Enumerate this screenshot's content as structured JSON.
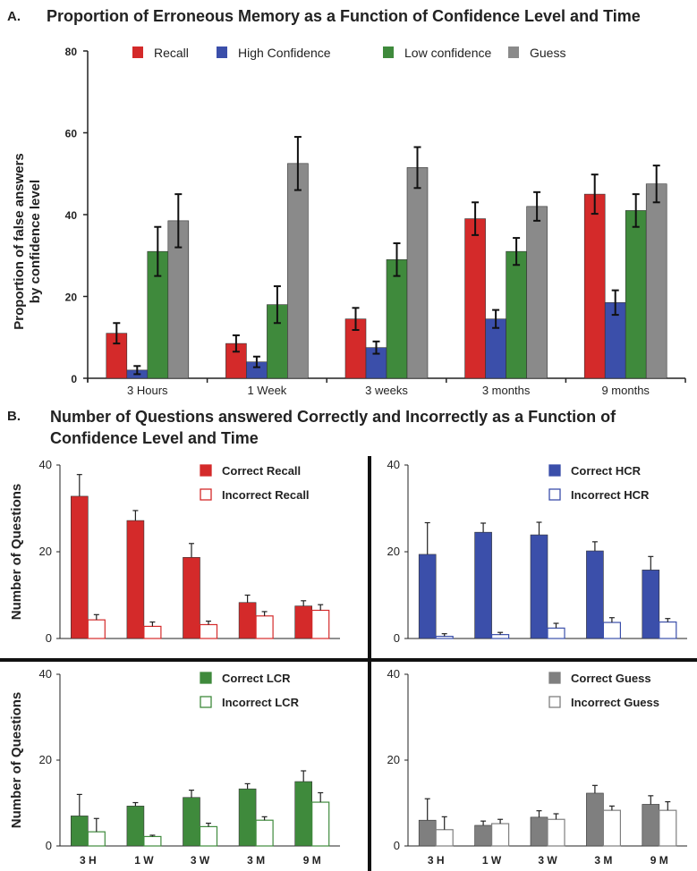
{
  "colors": {
    "Recall": "#d42a2a",
    "High Confidence": "#3b4faa",
    "Low confidence": "#3f8a3c",
    "Guess": "#8a8a8a"
  },
  "panel_a": {
    "letter": "A.",
    "title": "Proportion of Erroneous Memory as a Function of Confidence Level and Time"
  },
  "panel_b": {
    "letter": "B.",
    "title_line1": "Number of Questions answered Correctly and Incorrectly as a Function of",
    "title_line2": "Confidence Level and Time"
  },
  "chart_data": [
    {
      "type": "bar",
      "title": "Proportion of Erroneous Memory as a Function of Confidence Level and Time",
      "ylabel": "Proportion of false answers by confidence level",
      "ylabel_lines": [
        "Proportion of false answers",
        "by confidence level"
      ],
      "xlabel": "",
      "ylim": [
        0,
        80
      ],
      "yticks": [
        0,
        20,
        40,
        60,
        80
      ],
      "categories": [
        "3 Hours",
        "1 Week",
        "3 weeks",
        "3 months",
        "9 months"
      ],
      "legend_position": "top",
      "series": [
        {
          "name": "Recall",
          "values": [
            11,
            8.5,
            14.5,
            39,
            45
          ],
          "errors": [
            2.5,
            2,
            2.7,
            4,
            4.8
          ]
        },
        {
          "name": "High Confidence",
          "values": [
            2,
            4,
            7.5,
            14.5,
            18.5
          ],
          "errors": [
            1,
            1.3,
            1.5,
            2.2,
            3
          ]
        },
        {
          "name": "Low confidence",
          "values": [
            31,
            18,
            29,
            31,
            41
          ],
          "errors": [
            6,
            4.5,
            4,
            3.3,
            4
          ]
        },
        {
          "name": "Guess",
          "values": [
            38.5,
            52.5,
            51.5,
            42,
            47.5
          ],
          "errors": [
            6.5,
            6.5,
            5,
            3.5,
            4.5
          ]
        }
      ]
    },
    {
      "type": "bar",
      "ylabel": "Number of Questions",
      "ylim": [
        0,
        40
      ],
      "yticks": [
        0,
        20,
        40
      ],
      "categories": [
        "3 H",
        "1 W",
        "3 W",
        "3 M",
        "9 M"
      ],
      "legend_position": "top-right",
      "series": [
        {
          "name": "Correct Recall",
          "values": [
            32.8,
            27.2,
            18.7,
            8.3,
            7.5
          ],
          "errors": [
            5,
            2.3,
            3.2,
            1.7,
            1.2
          ]
        },
        {
          "name": "Incorrect Recall",
          "values": [
            4.3,
            2.8,
            3.2,
            5.2,
            6.5
          ],
          "errors": [
            1.2,
            1,
            0.8,
            1,
            1.3
          ]
        }
      ]
    },
    {
      "type": "bar",
      "ylim": [
        0,
        40
      ],
      "yticks": [
        0,
        20,
        40
      ],
      "categories": [
        "3 H",
        "1 W",
        "3 W",
        "3 M",
        "9 M"
      ],
      "legend_position": "top-right",
      "series": [
        {
          "name": "Correct HCR",
          "values": [
            19.4,
            24.5,
            23.9,
            20.2,
            15.8
          ],
          "errors": [
            7.3,
            2.1,
            2.9,
            2.1,
            3.1
          ]
        },
        {
          "name": "Incorrect HCR",
          "values": [
            0.5,
            0.9,
            2.4,
            3.7,
            3.8
          ],
          "errors": [
            0.6,
            0.5,
            1.1,
            1.1,
            0.8
          ]
        }
      ]
    },
    {
      "type": "bar",
      "ylabel": "Number of Questions",
      "ylim": [
        0,
        40
      ],
      "yticks": [
        0,
        20,
        40
      ],
      "categories": [
        "3 H",
        "1 W",
        "3 W",
        "3 M",
        "9 M"
      ],
      "legend_position": "top-right",
      "series": [
        {
          "name": "Correct LCR",
          "values": [
            7,
            9.3,
            11.3,
            13.3,
            15
          ],
          "errors": [
            5,
            0.8,
            1.7,
            1.2,
            2.5
          ]
        },
        {
          "name": "Incorrect LCR",
          "values": [
            3.3,
            2.2,
            4.5,
            6,
            10.2
          ],
          "errors": [
            3.1,
            0.3,
            0.8,
            0.8,
            2.2
          ]
        }
      ]
    },
    {
      "type": "bar",
      "ylim": [
        0,
        40
      ],
      "yticks": [
        0,
        20,
        40
      ],
      "categories": [
        "3 H",
        "1 W",
        "3 W",
        "3 M",
        "9 M"
      ],
      "legend_position": "top-right",
      "series": [
        {
          "name": "Correct Guess",
          "values": [
            6,
            4.8,
            6.7,
            12.3,
            9.7
          ],
          "errors": [
            5,
            1,
            1.5,
            1.8,
            2
          ]
        },
        {
          "name": "Incorrect Guess",
          "values": [
            3.8,
            5.2,
            6.2,
            8.3,
            8.3
          ],
          "errors": [
            3,
            1,
            1.3,
            1,
            2
          ]
        }
      ]
    }
  ]
}
